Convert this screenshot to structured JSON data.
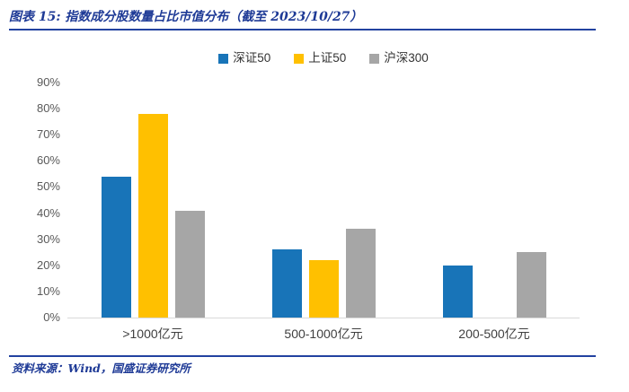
{
  "header": {
    "title": "图表 15: 指数成分股数量占比市值分布（截至 2023/10/27）"
  },
  "footer": {
    "source": "资料来源：Wind，国盛证券研究所"
  },
  "colors": {
    "title_text": "#1E3A96",
    "divider_line": "#2242A0",
    "axis_line": "#D9D9D9",
    "axis_text": "#595959",
    "category_text": "#404040",
    "series_blue": "#1874B8",
    "series_yellow": "#FFC000",
    "series_gray": "#A6A6A6"
  },
  "chart_data": {
    "type": "bar",
    "title": "指数成分股数量占比市值分布（截至 2023/10/27）",
    "categories": [
      ">1000亿元",
      "500-1000亿元",
      "200-500亿元"
    ],
    "series": [
      {
        "name": "深证50",
        "color": "#1874B8",
        "values": [
          54,
          26,
          20
        ]
      },
      {
        "name": "上证50",
        "color": "#FFC000",
        "values": [
          78,
          22,
          0
        ]
      },
      {
        "name": "沪深300",
        "color": "#A6A6A6",
        "values": [
          41,
          34,
          25
        ]
      }
    ],
    "xlabel": "",
    "ylabel": "",
    "ylim": [
      0,
      90
    ],
    "ytick_step": 10,
    "ytick_suffix": "%",
    "grid": false,
    "legend_position": "top"
  }
}
